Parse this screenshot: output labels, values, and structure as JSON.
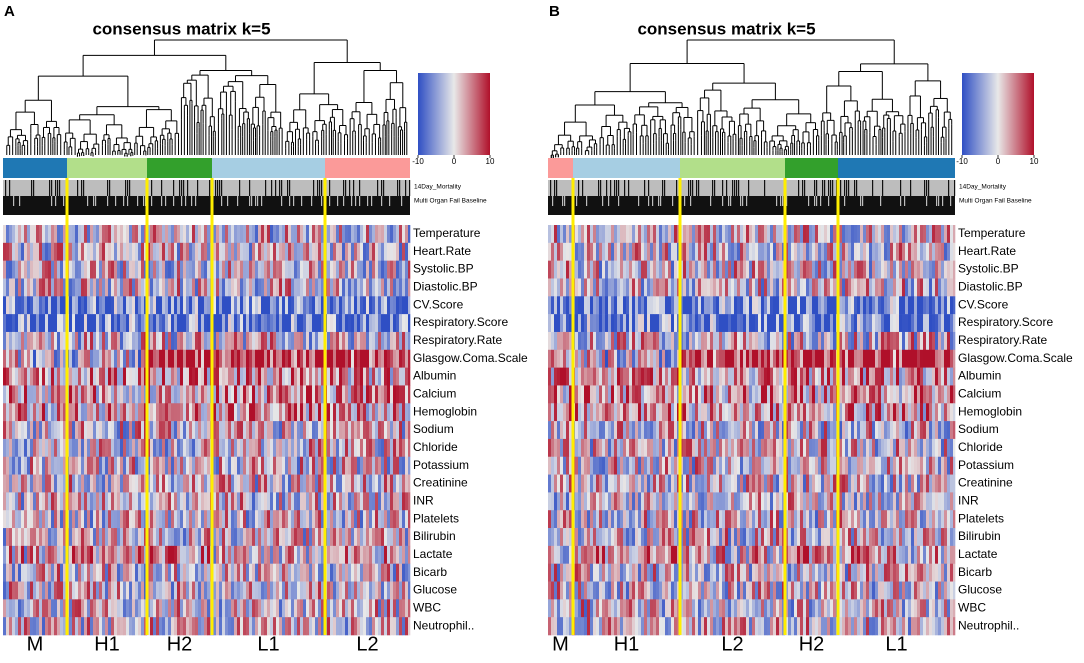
{
  "panels": [
    {
      "letter": "A",
      "title": "consensus matrix k=5",
      "legend_ticks": [
        -10,
        0,
        10
      ],
      "annotation_labels": [
        "14Day_Mortality",
        "Multi Organ Fail Baseline"
      ],
      "clusters": [
        {
          "label": "M",
          "color": "#1f78b4"
        },
        {
          "label": "H1",
          "color": "#b2df8a"
        },
        {
          "label": "H2",
          "color": "#33a02c"
        },
        {
          "label": "L1",
          "color": "#a6cee3"
        },
        {
          "label": "L2",
          "color": "#fb9a99"
        }
      ],
      "rows": [
        "Temperature",
        "Heart.Rate",
        "Systolic.BP",
        "Diastolic.BP",
        "CV.Score",
        "Respiratory.Score",
        "Respiratory.Rate",
        "Glasgow.Coma.Scale",
        "Albumin",
        "Calcium",
        "Hemoglobin",
        "Sodium",
        "Chloride",
        "Potassium",
        "Creatinine",
        "INR",
        "Platelets",
        "Bilirubin",
        "Lactate",
        "Bicarb",
        "Glucose",
        "WBC",
        "Neutrophil.."
      ]
    },
    {
      "letter": "B",
      "title": "consensus matrix k=5",
      "legend_ticks": [
        -10,
        0,
        10
      ],
      "annotation_labels": [
        "14Day_Mortality",
        "Multi Organ Fail Baseline"
      ],
      "clusters": [
        {
          "label": "M",
          "color": "#fb9a99"
        },
        {
          "label": "H1",
          "color": "#a6cee3"
        },
        {
          "label": "L2",
          "color": "#b2df8a"
        },
        {
          "label": "H2",
          "color": "#33a02c"
        },
        {
          "label": "L1",
          "color": "#1f78b4"
        }
      ],
      "rows": [
        "Temperature",
        "Heart.Rate",
        "Systolic.BP",
        "Diastolic.BP",
        "CV.Score",
        "Respiratory.Score",
        "Respiratory.Rate",
        "Glasgow.Coma.Scale",
        "Albumin",
        "Calcium",
        "Hemoglobin",
        "Sodium",
        "Chloride",
        "Potassium",
        "Creatinine",
        "INR",
        "Platelets",
        "Bilirubin",
        "Lactate",
        "Bicarb",
        "Glucose",
        "WBC",
        "Neutrophil.."
      ]
    }
  ]
}
